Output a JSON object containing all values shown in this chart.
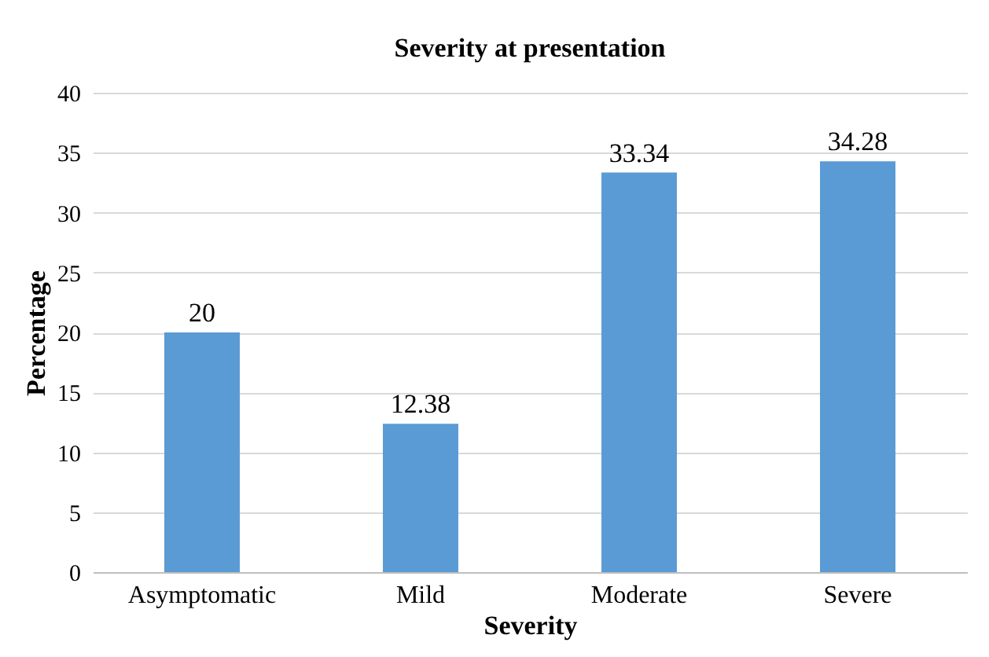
{
  "chart_data": {
    "type": "bar",
    "title": "Severity at presentation",
    "xlabel": "Severity",
    "ylabel": "Percentage",
    "categories": [
      "Asymptomatic",
      "Mild",
      "Moderate",
      "Severe"
    ],
    "values": [
      20,
      12.38,
      33.34,
      34.28
    ],
    "color": "#5b9bd5",
    "ylim": [
      0,
      40
    ],
    "yticks": [
      0,
      5,
      10,
      15,
      20,
      25,
      30,
      35,
      40
    ],
    "grid": "y",
    "data_labels": true
  }
}
